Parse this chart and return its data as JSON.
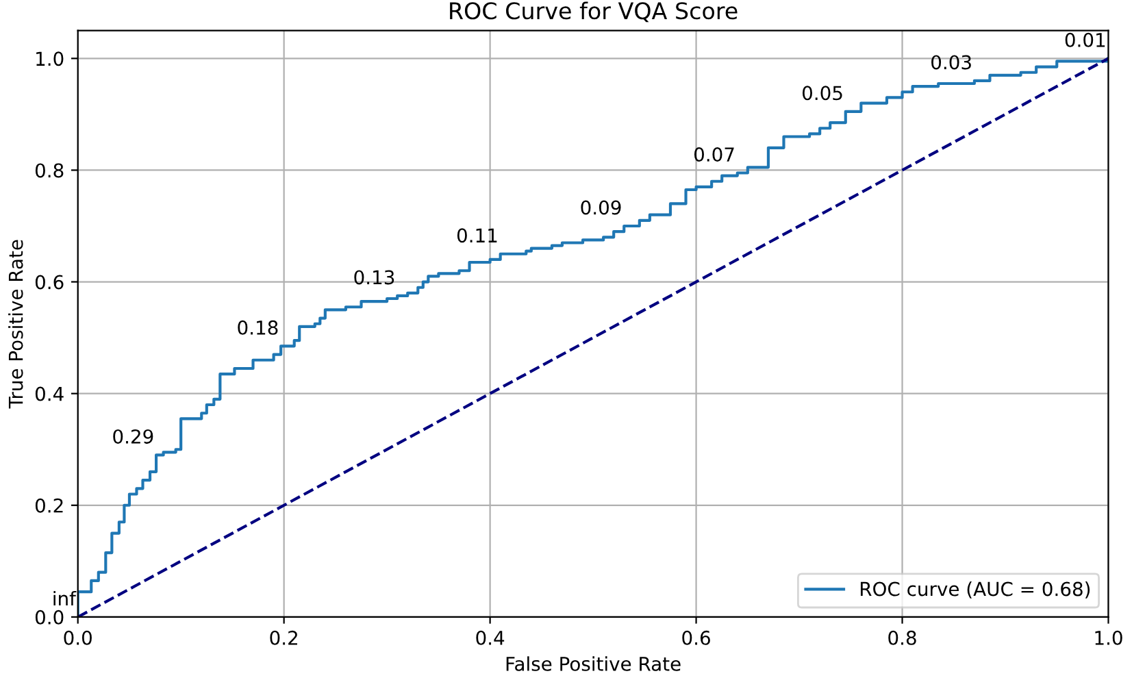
{
  "chart_data": {
    "type": "step",
    "title": "ROC Curve for VQA Score",
    "xlabel": "False Positive Rate",
    "ylabel": "True Positive Rate",
    "xlim": [
      0,
      1
    ],
    "ylim": [
      0,
      1.05
    ],
    "xticks": [
      {
        "value": 0,
        "label": "0.0"
      },
      0.2,
      0.4,
      0.6,
      0.8,
      {
        "value": 1,
        "label": "1.0"
      }
    ],
    "yticks": [
      {
        "value": 0,
        "label": "0.0"
      },
      0.2,
      0.4,
      0.6,
      0.8,
      {
        "value": 1,
        "label": "1.0"
      }
    ],
    "grid": true,
    "legend": "bottom right",
    "series": [
      {
        "name": "ROC curve (AUC = 0.68)",
        "color": "#1f77b4",
        "line_style": "solid",
        "x": [
          0,
          0,
          0.013,
          0.02,
          0.027,
          0.033,
          0.04,
          0.045,
          0.05,
          0.057,
          0.063,
          0.07,
          0.076,
          0.083,
          0.095,
          0.1,
          0.12,
          0.125,
          0.132,
          0.138,
          0.152,
          0.17,
          0.19,
          0.197,
          0.21,
          0.215,
          0.23,
          0.235,
          0.24,
          0.26,
          0.275,
          0.3,
          0.31,
          0.32,
          0.33,
          0.335,
          0.34,
          0.35,
          0.37,
          0.38,
          0.4,
          0.41,
          0.435,
          0.44,
          0.46,
          0.47,
          0.49,
          0.51,
          0.52,
          0.53,
          0.545,
          0.555,
          0.575,
          0.59,
          0.6,
          0.615,
          0.625,
          0.64,
          0.65,
          0.67,
          0.685,
          0.71,
          0.72,
          0.73,
          0.745,
          0.76,
          0.785,
          0.8,
          0.81,
          0.835,
          0.87,
          0.885,
          0.915,
          0.93,
          0.95,
          1.0
        ],
        "values": [
          0,
          0.045,
          0.065,
          0.08,
          0.115,
          0.15,
          0.17,
          0.2,
          0.22,
          0.23,
          0.245,
          0.26,
          0.29,
          0.295,
          0.3,
          0.355,
          0.365,
          0.38,
          0.39,
          0.435,
          0.445,
          0.46,
          0.47,
          0.485,
          0.495,
          0.52,
          0.525,
          0.535,
          0.55,
          0.555,
          0.565,
          0.57,
          0.575,
          0.58,
          0.59,
          0.6,
          0.61,
          0.615,
          0.62,
          0.635,
          0.64,
          0.65,
          0.655,
          0.66,
          0.665,
          0.67,
          0.675,
          0.68,
          0.69,
          0.7,
          0.71,
          0.72,
          0.74,
          0.765,
          0.77,
          0.78,
          0.79,
          0.795,
          0.805,
          0.84,
          0.86,
          0.865,
          0.875,
          0.885,
          0.905,
          0.92,
          0.93,
          0.94,
          0.95,
          0.955,
          0.96,
          0.97,
          0.975,
          0.985,
          0.995,
          1.0
        ]
      },
      {
        "color": "#000080",
        "type": "line",
        "line_style": "dashed",
        "x": [
          0,
          1
        ],
        "values": [
          0,
          1
        ]
      }
    ],
    "annotations": [
      {
        "text": "inf",
        "x": 0,
        "y": 0
      },
      {
        "text": "0.29",
        "x": 0.076,
        "y": 0.29
      },
      {
        "text": "0.18",
        "x": 0.197,
        "y": 0.485
      },
      {
        "text": "0.13",
        "x": 0.31,
        "y": 0.575
      },
      {
        "text": "0.11",
        "x": 0.41,
        "y": 0.65
      },
      {
        "text": "0.09",
        "x": 0.53,
        "y": 0.7
      },
      {
        "text": "0.07",
        "x": 0.64,
        "y": 0.795
      },
      {
        "text": "0.05",
        "x": 0.745,
        "y": 0.905
      },
      {
        "text": "0.03",
        "x": 0.87,
        "y": 0.96
      },
      {
        "text": "0.01",
        "x": 1.0,
        "y": 1.0
      }
    ]
  }
}
